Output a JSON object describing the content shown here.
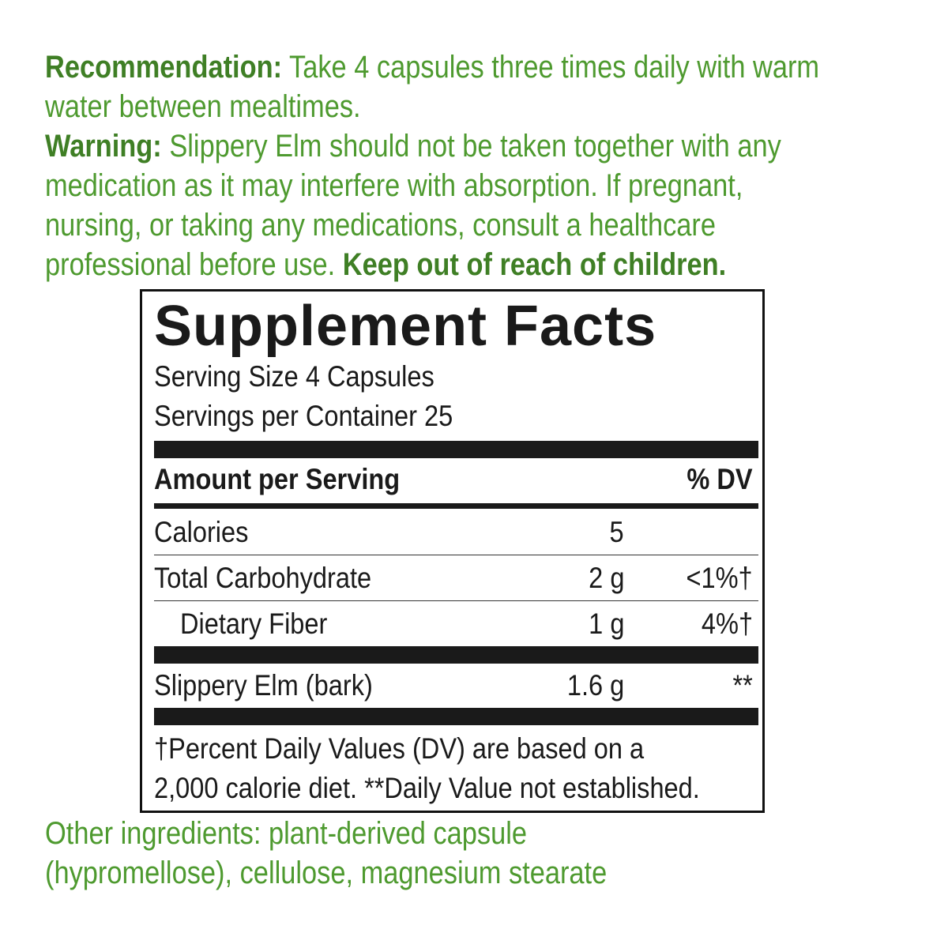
{
  "recommendation": {
    "label": "Recommendation:",
    "lines": [
      "Take 4 capsules three times daily with warm",
      "water between mealtimes."
    ]
  },
  "warning": {
    "label": "Warning:",
    "lines": [
      "Slippery Elm should not be taken together with any",
      "medication as it may interfere with absorption. If pregnant,",
      "nursing, or taking any medications, consult a healthcare",
      "professional before use."
    ],
    "emphasis": "Keep out of reach of children."
  },
  "facts": {
    "title": "Supplement Facts",
    "serving_size": "Serving Size 4 Capsules",
    "servings": "Servings per Container 25",
    "header": {
      "amount": "Amount per Serving",
      "dv": "% DV"
    },
    "rows": [
      [
        "Calories",
        "5",
        ""
      ],
      [
        "Total Carbohydrate",
        "2 g",
        "<1%†"
      ],
      [
        "Dietary Fiber",
        "1 g",
        "4%†"
      ],
      [
        "Slippery Elm (bark)",
        "1.6 g",
        "**"
      ]
    ],
    "footnote": [
      "†Percent Daily Values (DV) are based on a",
      "2,000 calorie diet. **Daily Value not established."
    ]
  },
  "other_ingredients": [
    "Other ingredients: plant-derived capsule",
    "(hypromellose), cellulose, magnesium stearate"
  ]
}
